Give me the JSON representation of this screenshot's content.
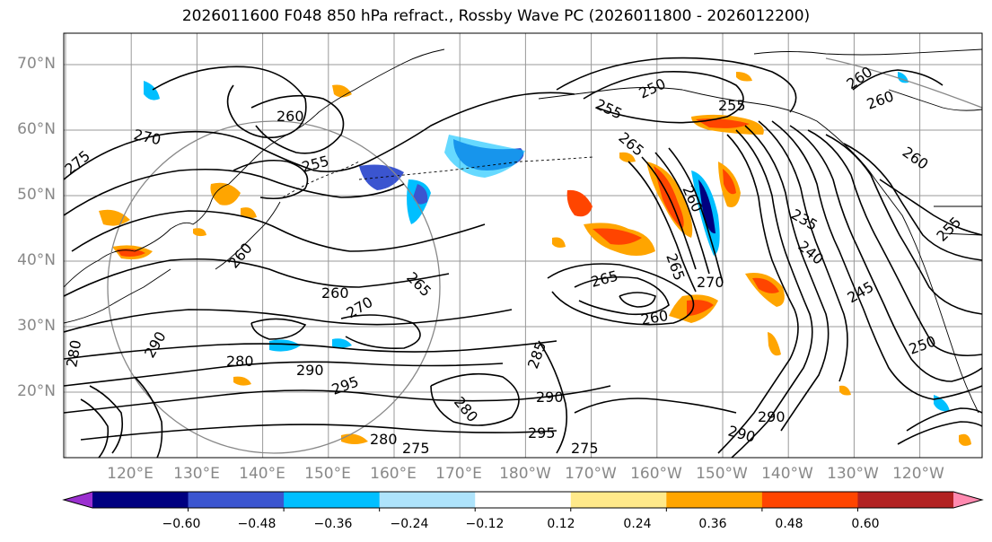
{
  "title": "2026011600 F048 850 hPa refract., Rossby Wave PC (2026011800 - 2026012200)",
  "lat_labels": [
    "70°N",
    "60°N",
    "50°N",
    "40°N",
    "30°N",
    "20°N"
  ],
  "lon_labels": [
    "120°E",
    "130°E",
    "140°E",
    "150°E",
    "160°E",
    "170°E",
    "180°W",
    "170°W",
    "160°W",
    "150°W",
    "140°W",
    "130°W",
    "120°W"
  ],
  "colorbar": {
    "colors": [
      "#9b30d0",
      "#000080",
      "#3b55d0",
      "#00bfff",
      "#aee3fb",
      "#ffffff",
      "#ffe98a",
      "#ffa500",
      "#ff4500",
      "#b22222",
      "#ff8ab0"
    ],
    "tick_labels": [
      "−0.60",
      "−0.48",
      "−0.36",
      "−0.24",
      "−0.12",
      "0.12",
      "0.24",
      "0.36",
      "0.48",
      "0.60"
    ]
  },
  "contour_labels": [
    "275",
    "270",
    "260",
    "255",
    "250",
    "255",
    "265",
    "260",
    "260",
    "255",
    "265",
    "260",
    "265",
    "270",
    "235",
    "240",
    "245",
    "250",
    "255",
    "260",
    "260",
    "265",
    "260",
    "280",
    "290",
    "295",
    "290",
    "285",
    "290",
    "295",
    "280",
    "275",
    "280",
    "290",
    "275",
    "260",
    "270",
    "280",
    "290"
  ],
  "map_features": {
    "coastline_color": "#000000",
    "grid_color": "#999999",
    "contour_color": "#000000",
    "circle_color": "#888888"
  }
}
